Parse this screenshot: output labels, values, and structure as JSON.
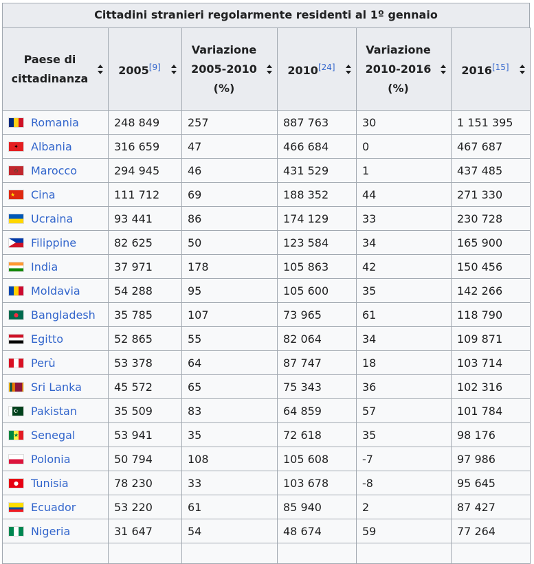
{
  "caption": "Cittadini stranieri regolarmente residenti al 1º gennaio",
  "headers": [
    {
      "label": "Paese di cittadinanza",
      "ref": ""
    },
    {
      "label": "2005",
      "ref": "[9]"
    },
    {
      "label": "Variazione 2005-2010 (%)",
      "ref": ""
    },
    {
      "label": "2010",
      "ref": "[24]"
    },
    {
      "label": "Variazione 2010-2016 (%)",
      "ref": ""
    },
    {
      "label": "2016",
      "ref": "[15]"
    }
  ],
  "rows": [
    {
      "country": "Romania",
      "flag": "romania-flag-icon",
      "v2005": "248 849",
      "var1": "257",
      "v2010": "887 763",
      "var2": "30",
      "v2016": "1 151 395"
    },
    {
      "country": "Albania",
      "flag": "albania-flag-icon",
      "v2005": "316 659",
      "var1": "47",
      "v2010": "466 684",
      "var2": "0",
      "v2016": "467 687"
    },
    {
      "country": "Marocco",
      "flag": "morocco-flag-icon",
      "v2005": "294 945",
      "var1": "46",
      "v2010": "431 529",
      "var2": "1",
      "v2016": "437 485"
    },
    {
      "country": "Cina",
      "flag": "china-flag-icon",
      "v2005": "111 712",
      "var1": "69",
      "v2010": "188 352",
      "var2": "44",
      "v2016": "271 330"
    },
    {
      "country": "Ucraina",
      "flag": "ukraine-flag-icon",
      "v2005": "93 441",
      "var1": "86",
      "v2010": "174 129",
      "var2": "33",
      "v2016": "230 728"
    },
    {
      "country": "Filippine",
      "flag": "philippines-flag-icon",
      "v2005": "82 625",
      "var1": "50",
      "v2010": "123 584",
      "var2": "34",
      "v2016": "165 900"
    },
    {
      "country": "India",
      "flag": "india-flag-icon",
      "v2005": "37 971",
      "var1": "178",
      "v2010": "105 863",
      "var2": "42",
      "v2016": "150 456"
    },
    {
      "country": "Moldavia",
      "flag": "moldova-flag-icon",
      "v2005": "54 288",
      "var1": "95",
      "v2010": "105 600",
      "var2": "35",
      "v2016": "142 266"
    },
    {
      "country": "Bangladesh",
      "flag": "bangladesh-flag-icon",
      "v2005": "35 785",
      "var1": "107",
      "v2010": "73 965",
      "var2": "61",
      "v2016": "118 790"
    },
    {
      "country": "Egitto",
      "flag": "egypt-flag-icon",
      "v2005": "52 865",
      "var1": "55",
      "v2010": "82 064",
      "var2": "34",
      "v2016": "109 871"
    },
    {
      "country": "Perù",
      "flag": "peru-flag-icon",
      "v2005": "53 378",
      "var1": "64",
      "v2010": "87 747",
      "var2": "18",
      "v2016": "103 714"
    },
    {
      "country": "Sri Lanka",
      "flag": "sri-lanka-flag-icon",
      "v2005": "45 572",
      "var1": "65",
      "v2010": "75 343",
      "var2": "36",
      "v2016": "102 316"
    },
    {
      "country": "Pakistan",
      "flag": "pakistan-flag-icon",
      "v2005": "35 509",
      "var1": "83",
      "v2010": "64 859",
      "var2": "57",
      "v2016": "101 784"
    },
    {
      "country": "Senegal",
      "flag": "senegal-flag-icon",
      "v2005": "53 941",
      "var1": "35",
      "v2010": "72 618",
      "var2": "35",
      "v2016": "98 176"
    },
    {
      "country": "Polonia",
      "flag": "poland-flag-icon",
      "v2005": "50 794",
      "var1": "108",
      "v2010": "105 608",
      "var2": "-7",
      "v2016": "97 986"
    },
    {
      "country": "Tunisia",
      "flag": "tunisia-flag-icon",
      "v2005": "78 230",
      "var1": "33",
      "v2010": "103 678",
      "var2": "-8",
      "v2016": "95 645"
    },
    {
      "country": "Ecuador",
      "flag": "ecuador-flag-icon",
      "v2005": "53 220",
      "var1": "61",
      "v2010": "85 940",
      "var2": "2",
      "v2016": "87 427"
    },
    {
      "country": "Nigeria",
      "flag": "nigeria-flag-icon",
      "v2005": "31 647",
      "var1": "54",
      "v2010": "48 674",
      "var2": "59",
      "v2016": "77 264"
    }
  ],
  "colors": {
    "link": "#3366cc",
    "header_bg": "#eaecf0",
    "cell_bg": "#f8f9fa",
    "border": "#a2a9b1"
  }
}
